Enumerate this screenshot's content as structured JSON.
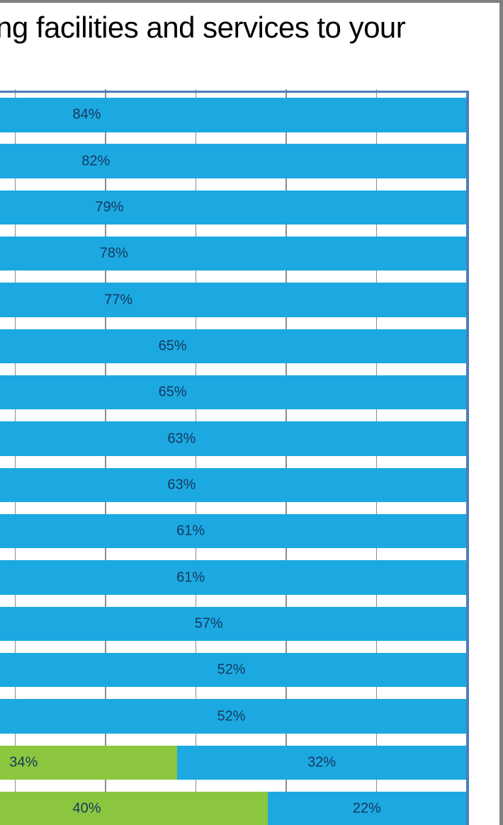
{
  "title": {
    "visible_text": "ng facilities and services to your"
  },
  "colors": {
    "background": "#FFFFFF",
    "chart_frame": "#808080",
    "plot_border": "#4C7DBB",
    "gridline": "#8C8C8C",
    "bar_blue": "#1CA9E1",
    "bar_green": "#8CC63F",
    "label_text": "#17375E",
    "title_text": "#000000"
  },
  "chart_data": {
    "type": "bar",
    "subtype": "horizontal-stacked-100pct-right-aligned-cropped-left",
    "title": "ng facilities and services to your",
    "legend": "not visible (cropped)",
    "axis": {
      "right_edge_pct": 100,
      "gridline_step_pct": 10,
      "gridlines_visible_pct": [
        50,
        60,
        70,
        80,
        90
      ],
      "grid": true
    },
    "series": [
      {
        "name": "green-segment",
        "color": "#8CC63F"
      },
      {
        "name": "blue-segment",
        "color": "#1CA9E1"
      }
    ],
    "rows": [
      {
        "segments": [
          {
            "series": "blue-segment",
            "value": 84,
            "label": "84%"
          }
        ]
      },
      {
        "segments": [
          {
            "series": "blue-segment",
            "value": 82,
            "label": "82%"
          }
        ]
      },
      {
        "segments": [
          {
            "series": "blue-segment",
            "value": 79,
            "label": "79%"
          }
        ]
      },
      {
        "segments": [
          {
            "series": "blue-segment",
            "value": 78,
            "label": "78%"
          }
        ]
      },
      {
        "segments": [
          {
            "series": "blue-segment",
            "value": 77,
            "label": "77%"
          }
        ]
      },
      {
        "segments": [
          {
            "series": "blue-segment",
            "value": 65,
            "label": "65%"
          }
        ]
      },
      {
        "segments": [
          {
            "series": "blue-segment",
            "value": 65,
            "label": "65%"
          }
        ]
      },
      {
        "segments": [
          {
            "series": "blue-segment",
            "value": 63,
            "label": "63%"
          }
        ]
      },
      {
        "segments": [
          {
            "series": "blue-segment",
            "value": 63,
            "label": "63%"
          }
        ]
      },
      {
        "segments": [
          {
            "series": "blue-segment",
            "value": 61,
            "label": "61%"
          }
        ]
      },
      {
        "segments": [
          {
            "series": "blue-segment",
            "value": 61,
            "label": "61%"
          }
        ]
      },
      {
        "segments": [
          {
            "series": "blue-segment",
            "value": 57,
            "label": "57%"
          }
        ]
      },
      {
        "segments": [
          {
            "series": "blue-segment",
            "value": 52,
            "label": "52%"
          }
        ]
      },
      {
        "segments": [
          {
            "series": "blue-segment",
            "value": 52,
            "label": "52%"
          }
        ]
      },
      {
        "segments": [
          {
            "series": "green-segment",
            "value": 34,
            "label": "34%"
          },
          {
            "series": "blue-segment",
            "value": 32,
            "label": "32%"
          }
        ]
      },
      {
        "segments": [
          {
            "series": "green-segment",
            "value": 40,
            "label": "40%"
          },
          {
            "series": "blue-segment",
            "value": 22,
            "label": "22%"
          }
        ]
      }
    ]
  }
}
